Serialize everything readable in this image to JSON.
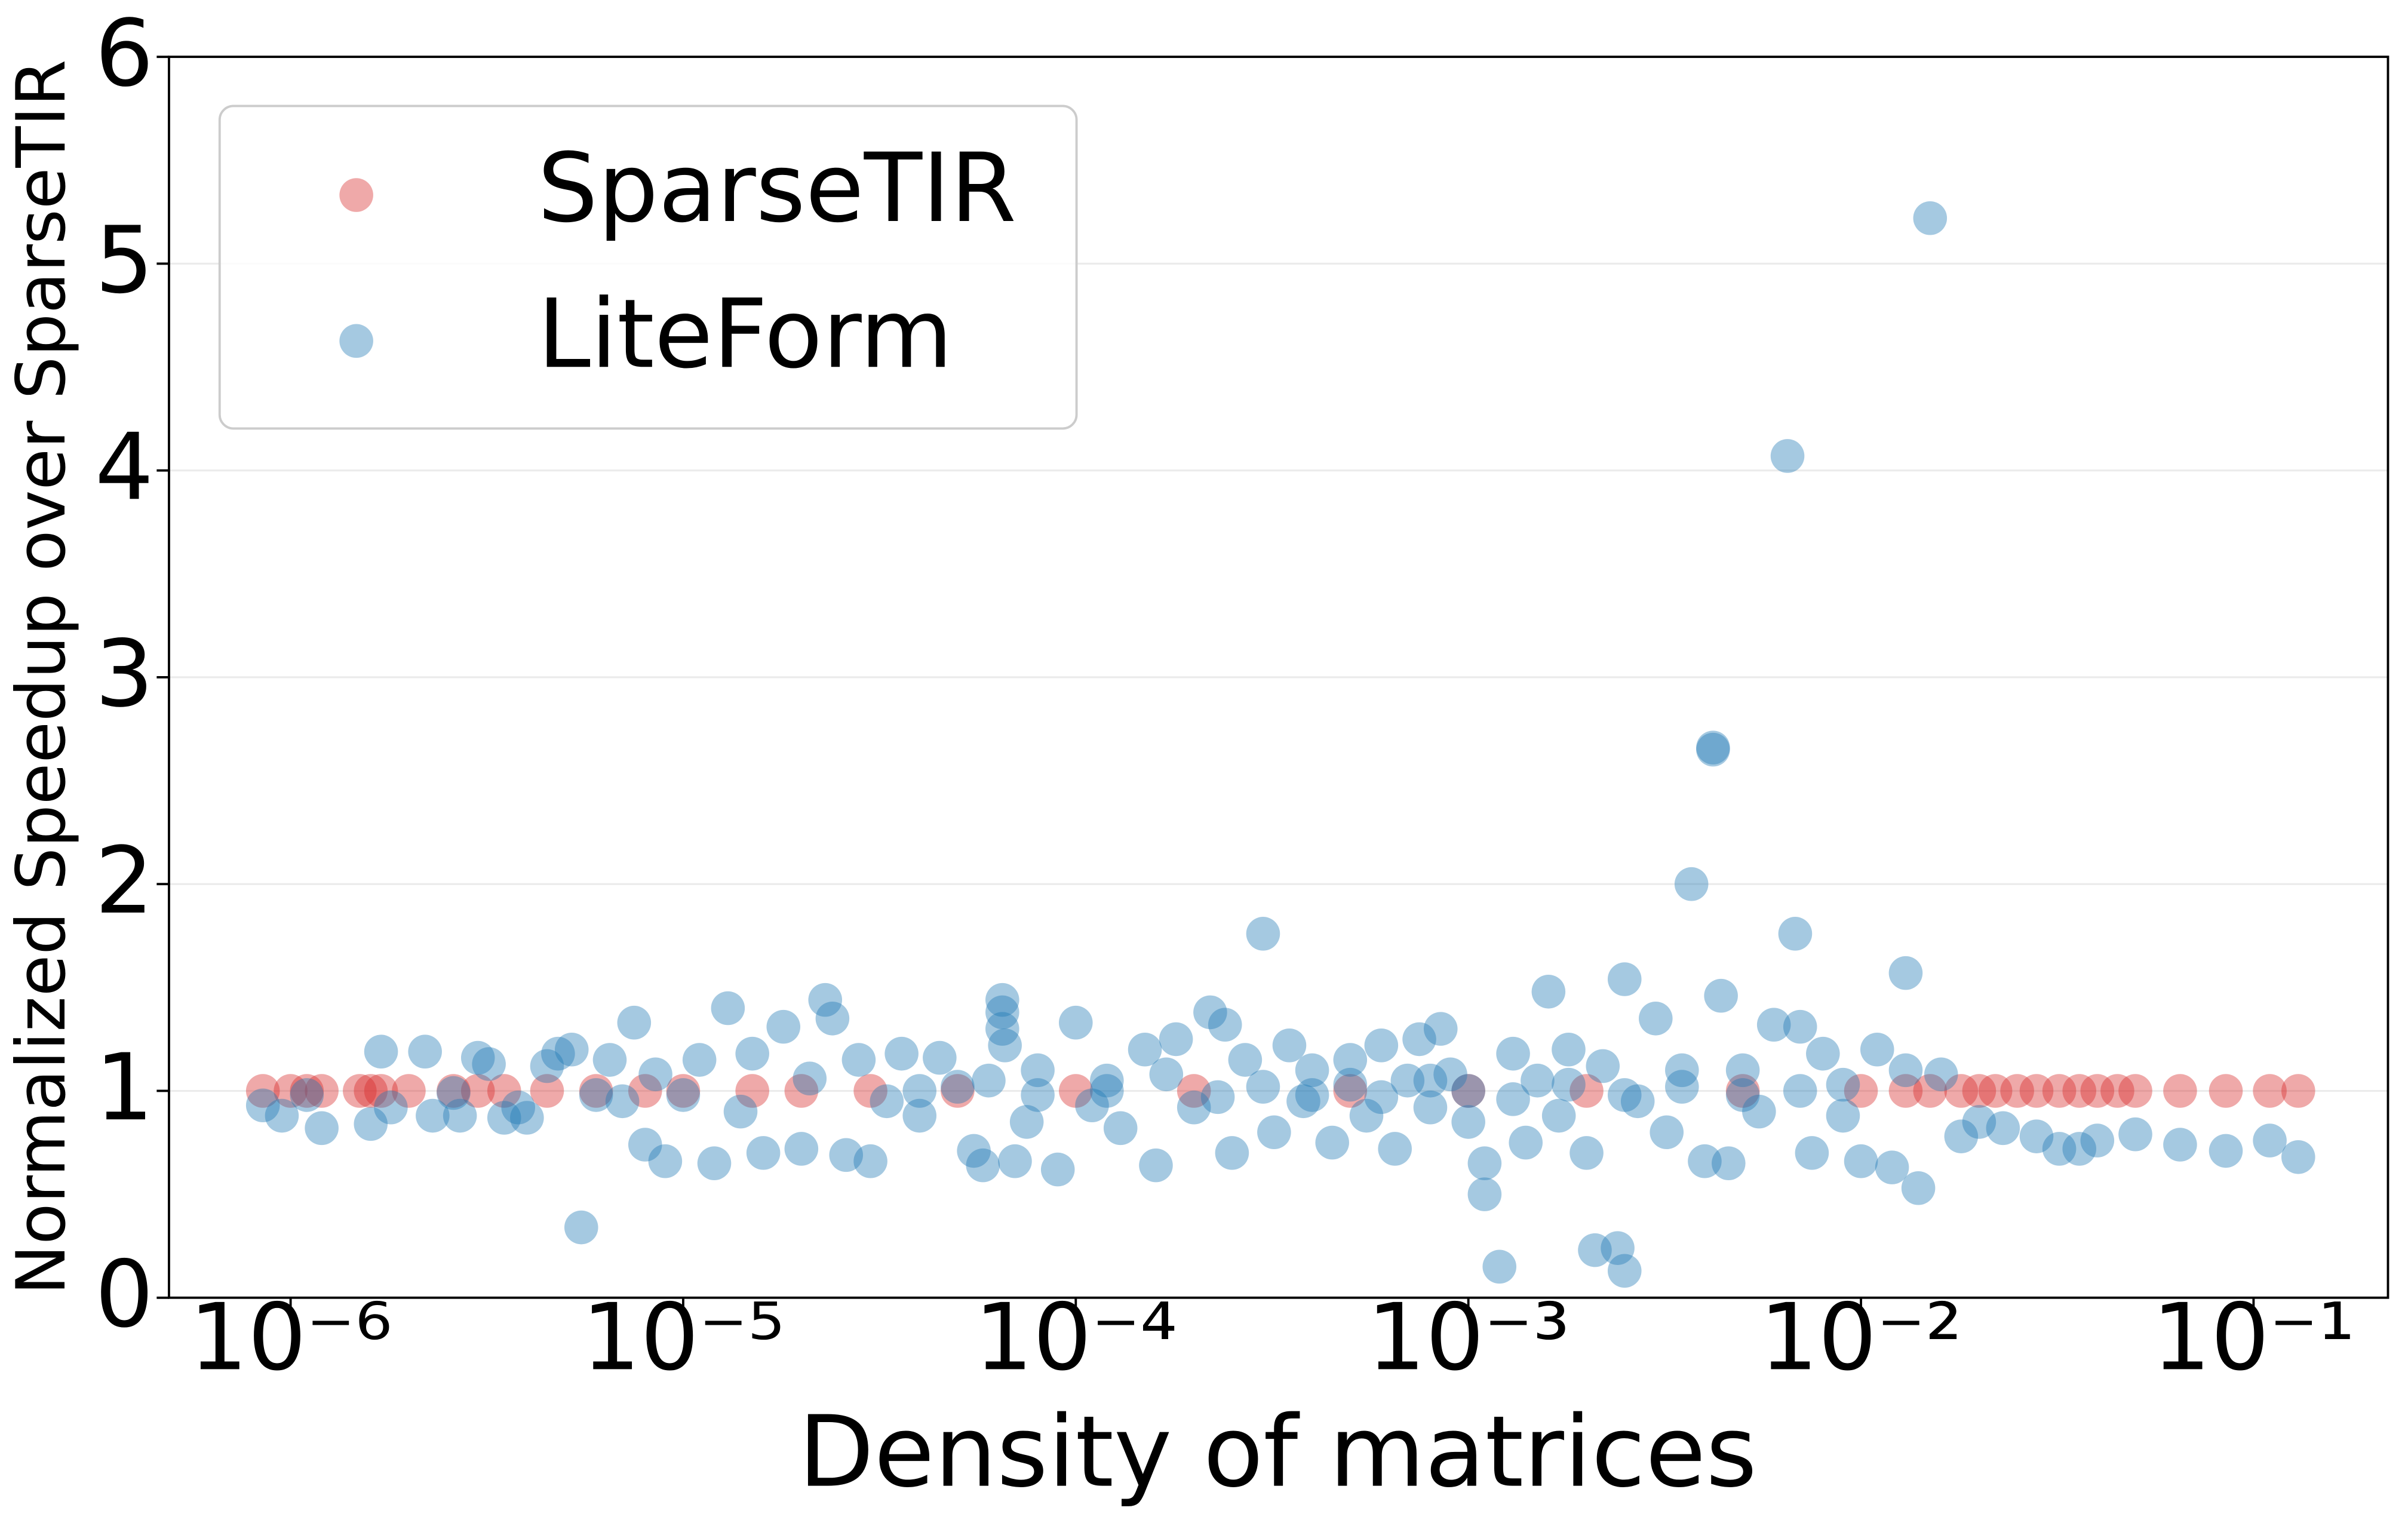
{
  "chart_data": {
    "type": "scatter",
    "xlabel": "Density of matrices",
    "ylabel": "Normalized Speedup over SparseTIR",
    "xscale": "log",
    "xlim": [
      4.9e-07,
      0.22
    ],
    "ylim": [
      0,
      6
    ],
    "xticks": [
      {
        "value": 1e-06,
        "label": "10⁻⁶"
      },
      {
        "value": 1e-05,
        "label": "10⁻⁵"
      },
      {
        "value": 0.0001,
        "label": "10⁻⁴"
      },
      {
        "value": 0.001,
        "label": "10⁻³"
      },
      {
        "value": 0.01,
        "label": "10⁻²"
      },
      {
        "value": 0.1,
        "label": "10⁻¹"
      }
    ],
    "yticks": [
      0,
      1,
      2,
      3,
      4,
      5,
      6
    ],
    "grid": true,
    "legend": "upper left",
    "series": [
      {
        "name": "SparseTIR",
        "color": "#d62728",
        "x": [
          8.5e-07,
          1e-06,
          1.1e-06,
          1.2e-06,
          1.5e-06,
          1.6e-06,
          1.7e-06,
          2e-06,
          2.6e-06,
          3e-06,
          3.5e-06,
          4.5e-06,
          6e-06,
          8e-06,
          1e-05,
          1.5e-05,
          2e-05,
          3e-05,
          5e-05,
          0.0001,
          0.0002,
          0.0005,
          0.001,
          0.002,
          0.005,
          0.01,
          0.013,
          0.015,
          0.018,
          0.02,
          0.022,
          0.025,
          0.028,
          0.032,
          0.036,
          0.04,
          0.045,
          0.05,
          0.065,
          0.085,
          0.11,
          0.13
        ],
        "values": [
          1,
          1,
          1,
          1,
          1,
          1,
          1,
          1,
          1,
          1,
          1,
          1,
          1,
          1,
          1,
          1,
          1,
          1,
          1,
          1,
          1,
          1,
          1,
          1,
          1,
          1,
          1,
          1,
          1,
          1,
          1,
          1,
          1,
          1,
          1,
          1,
          1,
          1,
          1,
          1,
          1,
          1
        ]
      },
      {
        "name": "LiteForm",
        "color": "#1f77b4",
        "x": [
          8.5e-07,
          9.5e-07,
          1.2e-06,
          1.1e-06,
          1.6e-06,
          1.7e-06,
          1.8e-06,
          2.2e-06,
          2.3e-06,
          2.6e-06,
          2.7e-06,
          3e-06,
          3.2e-06,
          3.5e-06,
          3.8e-06,
          4e-06,
          4.5e-06,
          4.8e-06,
          5.2e-06,
          5.5e-06,
          6e-06,
          6.5e-06,
          7e-06,
          7.5e-06,
          8e-06,
          8.5e-06,
          9e-06,
          1e-05,
          1.1e-05,
          1.2e-05,
          1.3e-05,
          1.4e-05,
          1.5e-05,
          1.6e-05,
          1.8e-05,
          2e-05,
          2.1e-05,
          2.3e-05,
          2.4e-05,
          2.6e-05,
          2.8e-05,
          3e-05,
          3.3e-05,
          3.6e-05,
          4e-05,
          4.5e-05,
          5e-05,
          5.5e-05,
          5.8e-05,
          6.5e-05,
          6.5e-05,
          6.5e-05,
          6.6e-05,
          7e-05,
          7.5e-05,
          8e-05,
          9e-05,
          0.0001,
          0.00011,
          0.00012,
          0.00013,
          0.00015,
          0.00016,
          0.00018,
          0.0002,
          0.00022,
          0.00024,
          0.00025,
          0.00027,
          0.0003,
          0.00032,
          0.00035,
          0.00038,
          0.0004,
          0.00045,
          0.0005,
          0.00055,
          0.0006,
          0.00065,
          0.0007,
          0.00075,
          0.0008,
          0.00085,
          0.0009,
          0.001,
          0.0011,
          0.0011,
          0.0012,
          0.0013,
          0.0014,
          0.0015,
          0.0016,
          0.0017,
          0.0018,
          0.002,
          0.0021,
          0.0022,
          0.0024,
          0.0025,
          0.0025,
          0.0027,
          0.003,
          0.0032,
          0.0035,
          0.0037,
          0.004,
          0.0042,
          0.0042,
          0.0044,
          0.0046,
          0.005,
          0.0055,
          0.006,
          0.0065,
          0.0068,
          0.007,
          0.0075,
          0.008,
          0.009,
          0.01,
          0.011,
          0.012,
          0.013,
          0.013,
          0.014,
          0.015,
          0.016,
          0.018,
          0.02,
          0.023,
          0.028,
          0.032,
          0.036,
          0.04,
          0.05,
          0.065,
          0.085,
          0.11,
          0.13,
          4e-05,
          6e-05,
          8e-05,
          0.00012,
          0.00017,
          0.00023,
          0.0003,
          0.0004,
          0.0005,
          0.0006,
          0.0008,
          0.001,
          0.0013,
          0.0018,
          0.0025,
          0.0035,
          0.005,
          0.007,
          0.009
        ],
        "values": [
          0.93,
          0.88,
          0.82,
          0.98,
          0.84,
          1.19,
          0.92,
          1.19,
          0.88,
          0.99,
          0.88,
          1.16,
          1.13,
          0.87,
          0.92,
          0.87,
          1.12,
          1.18,
          1.2,
          0.34,
          0.98,
          1.15,
          0.95,
          1.33,
          0.74,
          1.08,
          0.66,
          0.98,
          1.15,
          0.65,
          1.4,
          0.9,
          1.18,
          0.7,
          1.31,
          0.72,
          1.06,
          1.44,
          1.35,
          0.69,
          1.15,
          0.66,
          0.95,
          1.18,
          0.88,
          1.16,
          1.02,
          0.71,
          0.64,
          1.44,
          1.38,
          1.3,
          1.22,
          0.66,
          0.85,
          1.1,
          0.62,
          1.33,
          0.93,
          1.05,
          0.82,
          1.2,
          0.64,
          1.25,
          0.92,
          1.38,
          1.32,
          0.7,
          1.15,
          1.76,
          0.8,
          1.22,
          0.95,
          1.1,
          0.75,
          1.15,
          0.88,
          1.22,
          0.72,
          1.05,
          1.25,
          0.92,
          1.3,
          1.08,
          0.85,
          0.5,
          0.65,
          0.15,
          1.18,
          0.75,
          1.05,
          1.48,
          0.88,
          1.2,
          0.7,
          0.23,
          1.12,
          0.24,
          1.54,
          0.13,
          0.95,
          1.35,
          0.8,
          1.1,
          2.0,
          0.66,
          2.66,
          2.65,
          1.46,
          0.65,
          1.1,
          0.9,
          1.32,
          4.07,
          1.76,
          1.31,
          0.7,
          1.18,
          0.88,
          0.66,
          1.2,
          0.63,
          1.57,
          1.1,
          0.53,
          5.22,
          1.08,
          0.78,
          0.85,
          0.82,
          0.78,
          0.72,
          0.72,
          0.76,
          0.79,
          0.74,
          0.71,
          0.76,
          0.68,
          1.0,
          1.05,
          0.98,
          1.0,
          1.08,
          0.97,
          1.02,
          0.98,
          1.03,
          0.97,
          1.05,
          1.0,
          0.96,
          1.03,
          0.98,
          1.02,
          0.98,
          1.0,
          1.03
        ]
      }
    ]
  }
}
